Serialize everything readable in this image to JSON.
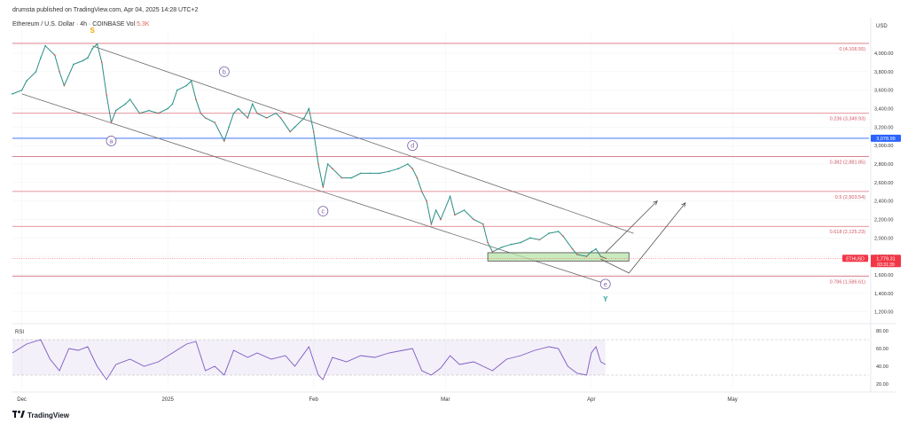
{
  "header": {
    "publisher_line": "drumsta published on TradingView.com, Apr 04, 2025 14:28 UTC+2",
    "symbol_title": "Ethereum / U.S. Dollar · 4h · COINBASE",
    "vol_label": "Vol",
    "vol_value": "5.3K"
  },
  "footer": {
    "logo_text": "TradingView",
    "logo_icon": "tradingview-logo-icon"
  },
  "chart_data": [
    {
      "type": "line",
      "title": "Ethereum / U.S. Dollar · 4h · COINBASE",
      "currency_label": "USD",
      "x_tick_labels": [
        "Dec",
        "2025",
        "Feb",
        "Mar",
        "Apr",
        "May"
      ],
      "y_tick_labels": [
        "4,000.00",
        "3,800.00",
        "3,600.00",
        "3,400.00",
        "3,200.00",
        "3,000.00",
        "2,800.00",
        "2,600.00",
        "2,400.00",
        "2,200.00",
        "2,000.00",
        "1,800.00",
        "1,600.00",
        "1,400.00",
        "1,200.00"
      ],
      "ylim": [
        1100,
        4250
      ],
      "price_series": [
        [
          "Nov 29",
          3560
        ],
        [
          "Dec 01",
          3600
        ],
        [
          "Dec 02",
          3700
        ],
        [
          "Dec 04",
          3800
        ],
        [
          "Dec 05",
          3950
        ],
        [
          "Dec 06",
          4080
        ],
        [
          "Dec 08",
          3980
        ],
        [
          "Dec 09",
          3800
        ],
        [
          "Dec 10",
          3650
        ],
        [
          "Dec 12",
          3880
        ],
        [
          "Dec 14",
          3920
        ],
        [
          "Dec 15",
          3950
        ],
        [
          "Dec 16",
          4050
        ],
        [
          "Dec 17",
          4100
        ],
        [
          "Dec 18",
          3900
        ],
        [
          "Dec 19",
          3550
        ],
        [
          "Dec 20",
          3250
        ],
        [
          "Dec 21",
          3380
        ],
        [
          "Dec 23",
          3450
        ],
        [
          "Dec 24",
          3500
        ],
        [
          "Dec 26",
          3350
        ],
        [
          "Dec 28",
          3380
        ],
        [
          "Dec 30",
          3350
        ],
        [
          "Jan 01",
          3400
        ],
        [
          "Jan 02",
          3450
        ],
        [
          "Jan 03",
          3600
        ],
        [
          "Jan 05",
          3650
        ],
        [
          "Jan 06",
          3700
        ],
        [
          "Jan 07",
          3500
        ],
        [
          "Jan 08",
          3350
        ],
        [
          "Jan 09",
          3300
        ],
        [
          "Jan 11",
          3250
        ],
        [
          "Jan 13",
          3050
        ],
        [
          "Jan 14",
          3200
        ],
        [
          "Jan 15",
          3350
        ],
        [
          "Jan 16",
          3400
        ],
        [
          "Jan 18",
          3300
        ],
        [
          "Jan 19",
          3450
        ],
        [
          "Jan 20",
          3350
        ],
        [
          "Jan 22",
          3300
        ],
        [
          "Jan 24",
          3350
        ],
        [
          "Jan 25",
          3300
        ],
        [
          "Jan 27",
          3150
        ],
        [
          "Jan 28",
          3200
        ],
        [
          "Jan 30",
          3300
        ],
        [
          "Jan 31",
          3400
        ],
        [
          "Feb 01",
          3150
        ],
        [
          "Feb 02",
          2800
        ],
        [
          "Feb 03",
          2550
        ],
        [
          "Feb 04",
          2800
        ],
        [
          "Feb 05",
          2750
        ],
        [
          "Feb 07",
          2650
        ],
        [
          "Feb 09",
          2650
        ],
        [
          "Feb 11",
          2700
        ],
        [
          "Feb 13",
          2700
        ],
        [
          "Feb 15",
          2700
        ],
        [
          "Feb 17",
          2720
        ],
        [
          "Feb 19",
          2750
        ],
        [
          "Feb 21",
          2800
        ],
        [
          "Feb 22",
          2750
        ],
        [
          "Feb 23",
          2650
        ],
        [
          "Feb 24",
          2500
        ],
        [
          "Feb 25",
          2400
        ],
        [
          "Feb 26",
          2150
        ],
        [
          "Feb 27",
          2300
        ],
        [
          "Feb 28",
          2200
        ],
        [
          "Mar 02",
          2450
        ],
        [
          "Mar 03",
          2250
        ],
        [
          "Mar 05",
          2300
        ],
        [
          "Mar 07",
          2200
        ],
        [
          "Mar 09",
          2150
        ],
        [
          "Mar 10",
          1950
        ],
        [
          "Mar 11",
          1850
        ],
        [
          "Mar 13",
          1900
        ],
        [
          "Mar 15",
          1930
        ],
        [
          "Mar 17",
          1950
        ],
        [
          "Mar 19",
          2000
        ],
        [
          "Mar 21",
          1980
        ],
        [
          "Mar 23",
          2050
        ],
        [
          "Mar 25",
          2070
        ],
        [
          "Mar 26",
          2020
        ],
        [
          "Mar 28",
          1880
        ],
        [
          "Mar 29",
          1820
        ],
        [
          "Mar 31",
          1800
        ],
        [
          "Apr 01",
          1850
        ],
        [
          "Apr 02",
          1880
        ],
        [
          "Apr 03",
          1800
        ],
        [
          "Apr 04",
          1779
        ]
      ],
      "fib_levels": [
        {
          "ratio": "0",
          "value": 4106.55,
          "label": "0 (4,106.55)"
        },
        {
          "ratio": "0.236",
          "value": 3349.93,
          "label": "0.236 (3,349.93)"
        },
        {
          "ratio": "0.382",
          "value": 2881.85,
          "label": "0.382 (2,881.85)"
        },
        {
          "ratio": "0.5",
          "value": 2503.54,
          "label": "0.5 (2,503.54)"
        },
        {
          "ratio": "0.618",
          "value": 2125.23,
          "label": "0.618 (2,125.23)"
        },
        {
          "ratio": "0.786",
          "value": 1586.61,
          "label": "0.786 (1,586.61)"
        }
      ],
      "horizontal_line": {
        "value": 3078.99,
        "label": "3,078.99",
        "color": "#2962ff"
      },
      "current_price": {
        "symbol": "ETHUSD",
        "value": "1,779.31",
        "countdown": "03:31:39",
        "color": "#f23645"
      },
      "wave_labels": [
        {
          "text": "S",
          "date": "Dec 16",
          "price": 4250,
          "color": "#f7a600"
        },
        {
          "text": "a",
          "date": "Dec 20",
          "price": 3050,
          "color": "#7b61a8"
        },
        {
          "text": "b",
          "date": "Jan 13",
          "price": 3800,
          "color": "#7b61a8"
        },
        {
          "text": "c",
          "date": "Feb 03",
          "price": 2290,
          "color": "#7b61a8"
        },
        {
          "text": "d",
          "date": "Feb 22",
          "price": 3000,
          "color": "#7b61a8"
        },
        {
          "text": "e",
          "date": "Apr 04",
          "price": 1500,
          "color": "#7b61a8"
        },
        {
          "text": "Y",
          "date": "Apr 04",
          "price": 1340,
          "color": "#26a69a"
        }
      ],
      "channel": {
        "upper": [
          [
            "Dec 16",
            4080
          ],
          [
            "Apr 10",
            2050
          ]
        ],
        "lower": [
          [
            "Dec 01",
            3560
          ],
          [
            "Apr 03",
            1520
          ]
        ]
      },
      "support_zone": {
        "from": "Mar 10",
        "to": "Apr 09",
        "low": 1750,
        "high": 1840,
        "color": "#b7e4a8"
      },
      "projection_arrows": [
        {
          "path": [
            [
              "Apr 04",
              1840
            ],
            [
              "Apr 15",
              2400
            ]
          ]
        },
        {
          "path": [
            [
              "Apr 03",
              1770
            ],
            [
              "Apr 09",
              1620
            ],
            [
              "Apr 21",
              2380
            ]
          ]
        }
      ]
    },
    {
      "type": "line",
      "title": "RSI",
      "y_tick_labels": [
        "80.00",
        "60.00",
        "40.00",
        "20.00"
      ],
      "ylim": [
        15,
        85
      ],
      "band": [
        30,
        70
      ],
      "color": "#7e57c2",
      "series": [
        [
          "Nov 29",
          55
        ],
        [
          "Dec 02",
          65
        ],
        [
          "Dec 05",
          70
        ],
        [
          "Dec 07",
          48
        ],
        [
          "Dec 09",
          35
        ],
        [
          "Dec 11",
          60
        ],
        [
          "Dec 13",
          58
        ],
        [
          "Dec 15",
          62
        ],
        [
          "Dec 17",
          40
        ],
        [
          "Dec 19",
          25
        ],
        [
          "Dec 21",
          42
        ],
        [
          "Dec 24",
          48
        ],
        [
          "Dec 27",
          40
        ],
        [
          "Dec 30",
          45
        ],
        [
          "Jan 02",
          55
        ],
        [
          "Jan 05",
          65
        ],
        [
          "Jan 07",
          68
        ],
        [
          "Jan 09",
          35
        ],
        [
          "Jan 11",
          40
        ],
        [
          "Jan 13",
          30
        ],
        [
          "Jan 15",
          58
        ],
        [
          "Jan 18",
          50
        ],
        [
          "Jan 20",
          55
        ],
        [
          "Jan 23",
          48
        ],
        [
          "Jan 26",
          52
        ],
        [
          "Jan 28",
          40
        ],
        [
          "Jan 31",
          62
        ],
        [
          "Feb 02",
          30
        ],
        [
          "Feb 03",
          25
        ],
        [
          "Feb 05",
          50
        ],
        [
          "Feb 08",
          45
        ],
        [
          "Feb 11",
          52
        ],
        [
          "Feb 14",
          50
        ],
        [
          "Feb 17",
          55
        ],
        [
          "Feb 20",
          58
        ],
        [
          "Feb 22",
          60
        ],
        [
          "Feb 24",
          35
        ],
        [
          "Feb 26",
          30
        ],
        [
          "Feb 28",
          38
        ],
        [
          "Mar 02",
          52
        ],
        [
          "Mar 04",
          42
        ],
        [
          "Mar 07",
          45
        ],
        [
          "Mar 09",
          40
        ],
        [
          "Mar 11",
          35
        ],
        [
          "Mar 14",
          48
        ],
        [
          "Mar 17",
          52
        ],
        [
          "Mar 20",
          58
        ],
        [
          "Mar 23",
          62
        ],
        [
          "Mar 25",
          60
        ],
        [
          "Mar 27",
          40
        ],
        [
          "Mar 29",
          32
        ],
        [
          "Mar 31",
          30
        ],
        [
          "Apr 01",
          55
        ],
        [
          "Apr 02",
          62
        ],
        [
          "Apr 03",
          45
        ],
        [
          "Apr 04",
          42
        ]
      ]
    }
  ]
}
